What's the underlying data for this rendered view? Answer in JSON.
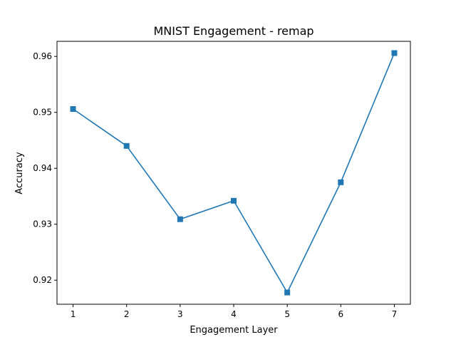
{
  "chart_data": {
    "type": "line",
    "title": "MNIST Engagement - remap",
    "xlabel": "Engagement Layer",
    "ylabel": "Accuracy",
    "x": [
      1,
      2,
      3,
      4,
      5,
      6,
      7
    ],
    "series": [
      {
        "values": [
          0.9506,
          0.944,
          0.9309,
          0.9342,
          0.9178,
          0.9375,
          0.9606
        ],
        "color": "#1f77b4",
        "marker": "square"
      }
    ],
    "xticks": [
      "1",
      "2",
      "3",
      "4",
      "5",
      "6",
      "7"
    ],
    "yticks": [
      "0.92",
      "0.93",
      "0.94",
      "0.95",
      "0.96"
    ],
    "xlim": [
      0.7,
      7.3
    ],
    "ylim": [
      0.9157,
      0.9627
    ],
    "grid": false,
    "legend": "none"
  }
}
